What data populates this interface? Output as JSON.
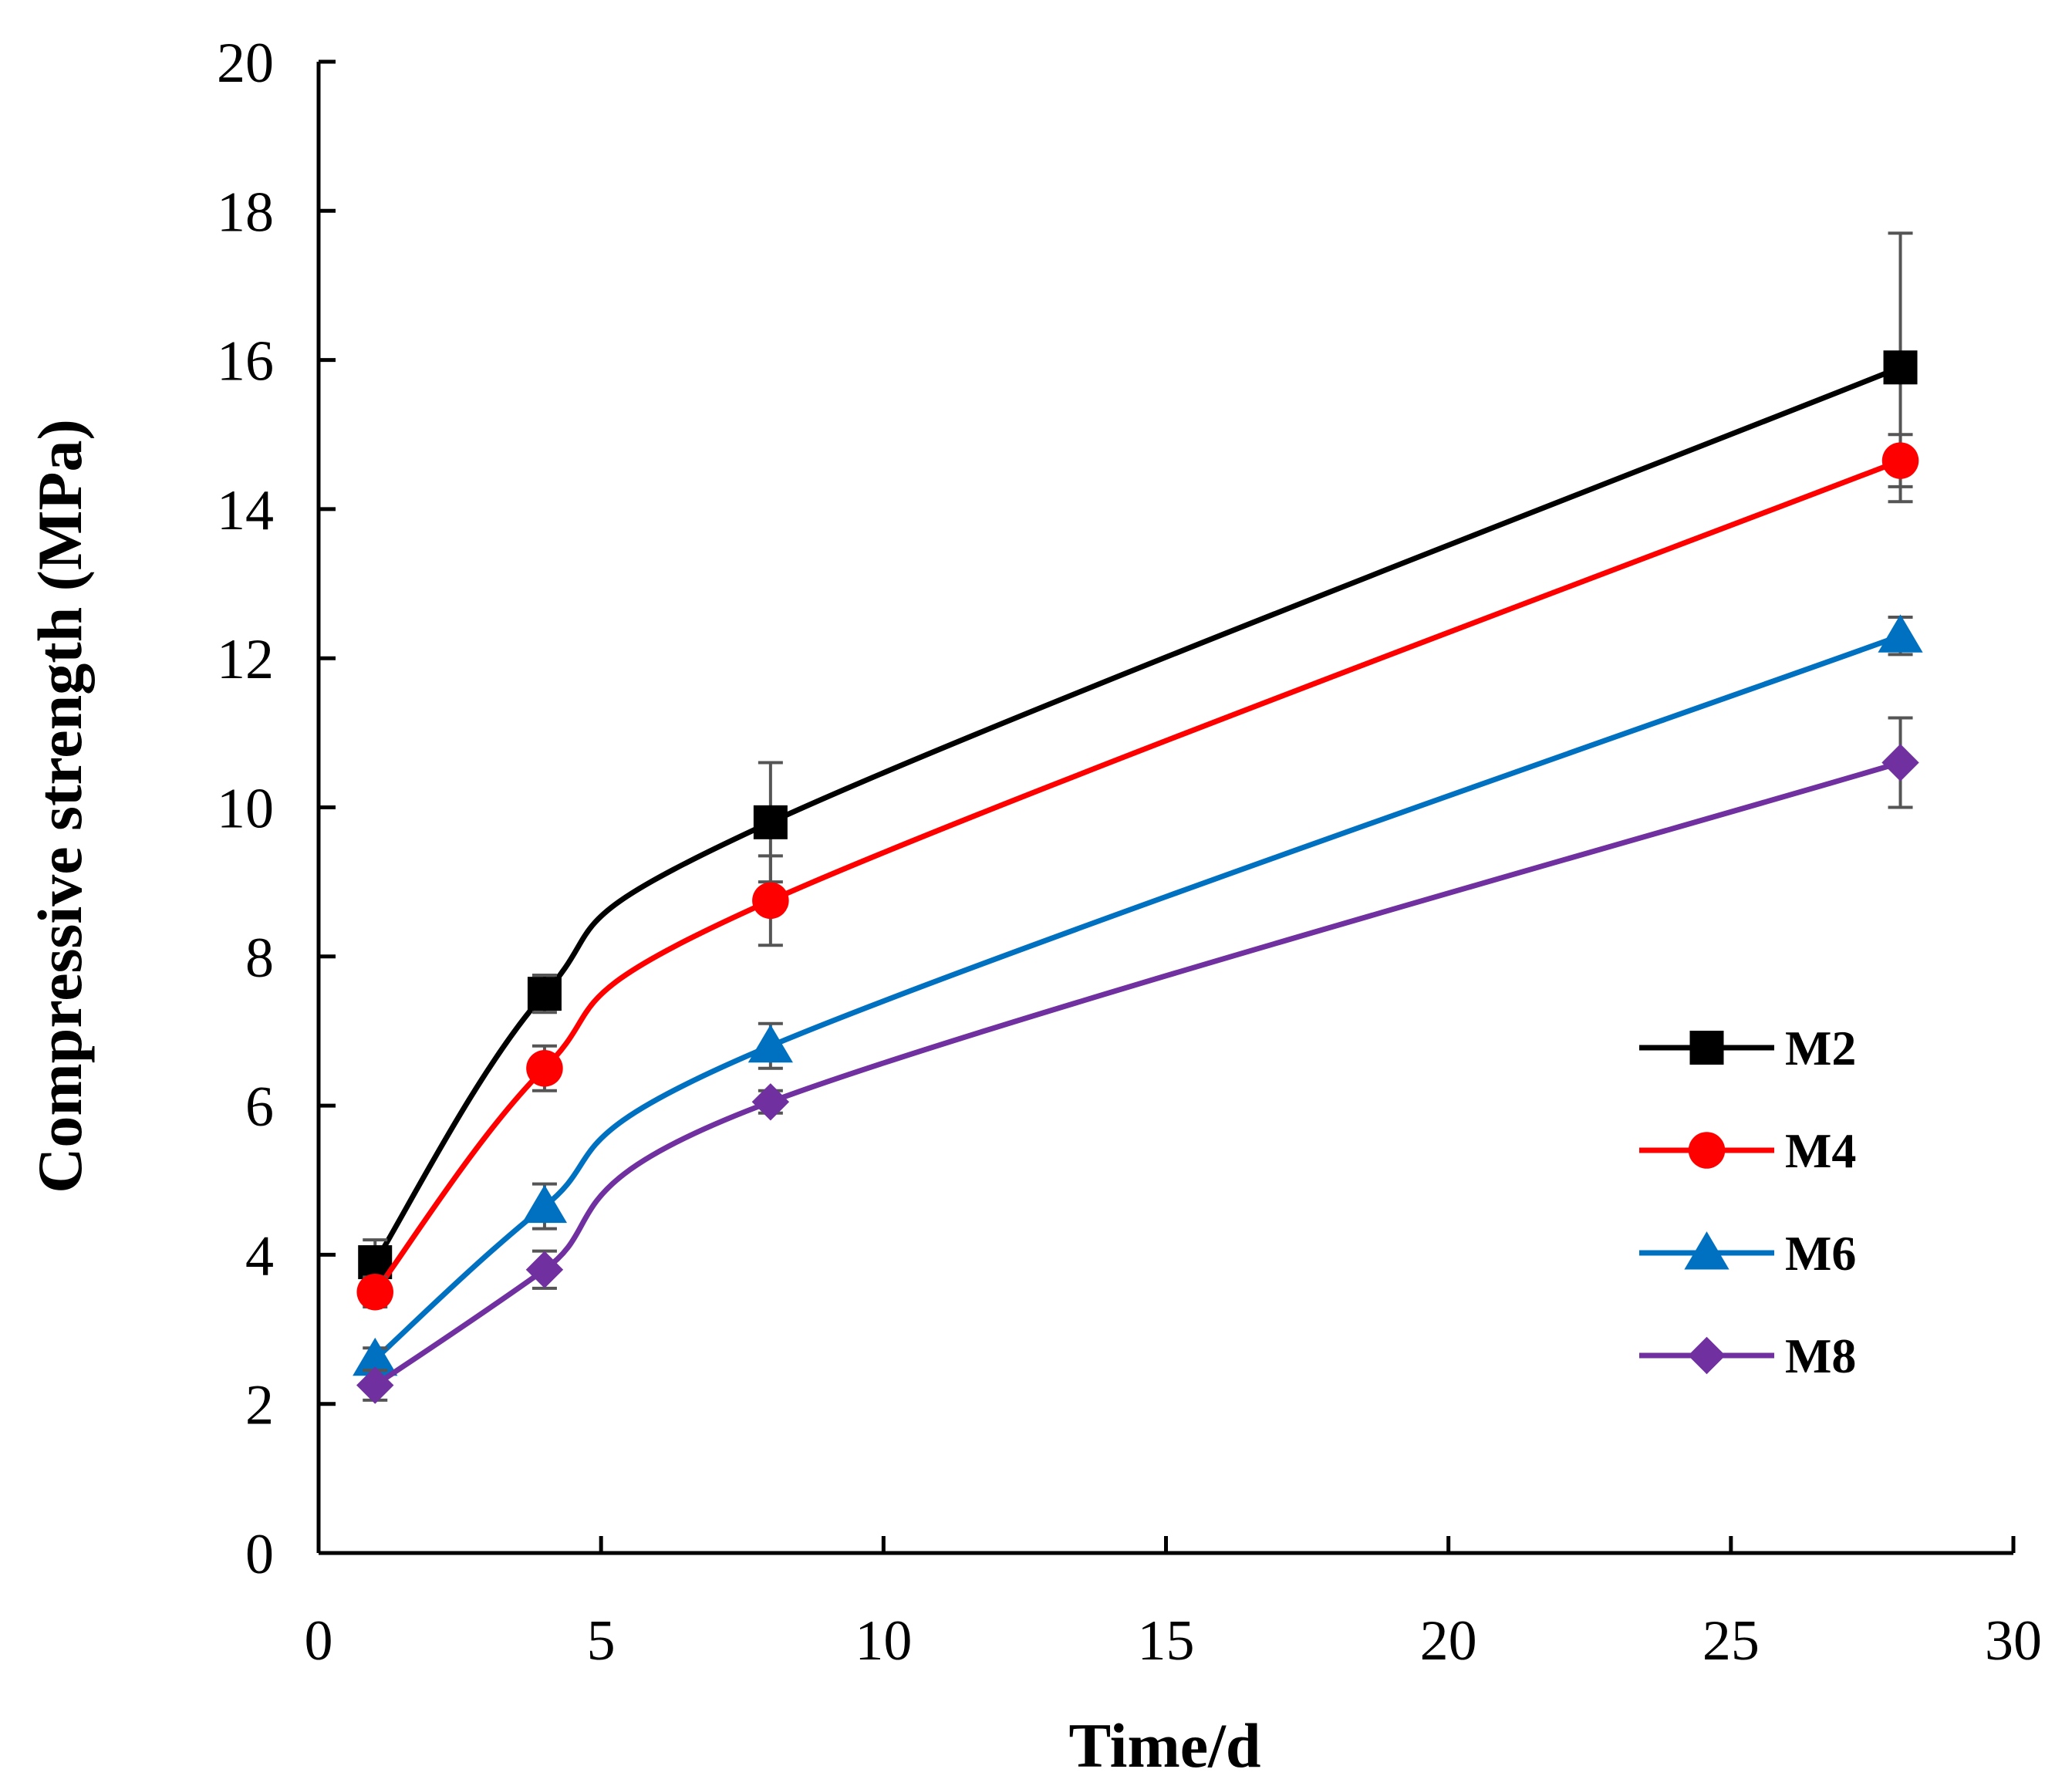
{
  "chart_data": {
    "type": "line",
    "title": "",
    "xlabel": "Time/d",
    "ylabel": "Compressive strength (MPa)",
    "xlim": [
      0,
      30
    ],
    "ylim": [
      0,
      20
    ],
    "xticks": [
      0,
      5,
      10,
      15,
      20,
      25,
      30
    ],
    "yticks": [
      0,
      2,
      4,
      6,
      8,
      10,
      12,
      14,
      16,
      18,
      20
    ],
    "grid": false,
    "legend_position": "right",
    "x": [
      1,
      4,
      8,
      28
    ],
    "series": [
      {
        "name": "M2",
        "color": "#000000",
        "marker": "square",
        "values": [
          3.9,
          7.5,
          9.8,
          15.9
        ],
        "errors": [
          0.3,
          0.25,
          0.8,
          1.8
        ]
      },
      {
        "name": "M4",
        "color": "#ff0000",
        "marker": "circle",
        "values": [
          3.5,
          6.5,
          8.75,
          14.65
        ],
        "errors": [
          0.2,
          0.3,
          0.6,
          0.35
        ]
      },
      {
        "name": "M6",
        "color": "#0070c0",
        "marker": "triangle",
        "values": [
          2.6,
          4.65,
          6.8,
          12.3
        ],
        "errors": [
          0.15,
          0.3,
          0.3,
          0.25
        ]
      },
      {
        "name": "M8",
        "color": "#7030a0",
        "marker": "diamond",
        "values": [
          2.25,
          3.8,
          6.05,
          10.6
        ],
        "errors": [
          0.2,
          0.25,
          0.15,
          0.6
        ]
      }
    ]
  }
}
